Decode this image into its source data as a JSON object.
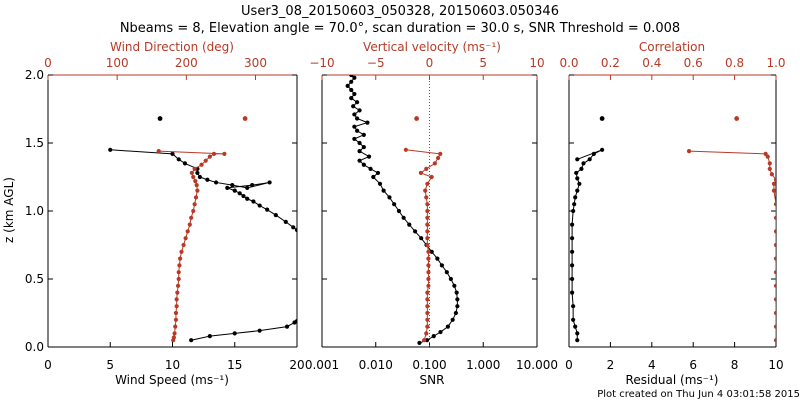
{
  "header": {
    "title_line1": "User3_08_20150603_050328, 20150603.050346",
    "title_line2": "Nbeams = 8, Elevation angle = 70.0°, scan duration = 30.0 s, SNR Threshold = 0.008"
  },
  "footer": {
    "text": "Plot created on Thu Jun  4 03:01:58 2015"
  },
  "colors": {
    "black": "#000000",
    "red": "#b83a26"
  },
  "chart_data": [
    {
      "id": "wind",
      "type": "line",
      "ylabel": "z (km AGL)",
      "ylim": [
        0,
        2.0
      ],
      "yticks": [
        "0.0",
        "0.5",
        "1.0",
        "1.5",
        "2.0"
      ],
      "bottom_axis": {
        "label": "Wind Speed (ms⁻¹)",
        "lim": [
          0,
          20
        ],
        "ticks": [
          "0",
          "5",
          "10",
          "15",
          "20"
        ]
      },
      "top_axis": {
        "label": "Wind Direction (deg)",
        "lim": [
          0,
          360
        ],
        "ticks": [
          "0",
          "100",
          "200",
          "300"
        ]
      },
      "series": [
        {
          "key": "wind_speed",
          "axis": "bottom",
          "color": "#000000",
          "points": [
            [
              11.5,
              0.05
            ],
            [
              13.0,
              0.08
            ],
            [
              15.0,
              0.1
            ],
            [
              17.0,
              0.12
            ],
            [
              19.2,
              0.15
            ],
            [
              19.8,
              0.18
            ],
            [
              20.0,
              0.19
            ],
            [
              20.0,
              0.86
            ],
            [
              19.7,
              0.88
            ],
            [
              19.1,
              0.92
            ],
            [
              18.3,
              0.97
            ],
            [
              17.6,
              1.01
            ],
            [
              17.0,
              1.04
            ],
            [
              16.5,
              1.07
            ],
            [
              16.0,
              1.09
            ],
            [
              15.7,
              1.11
            ],
            [
              15.4,
              1.13
            ],
            [
              15.0,
              1.15
            ],
            [
              14.4,
              1.17
            ],
            [
              16.4,
              1.19
            ],
            [
              17.8,
              1.21
            ],
            [
              16.0,
              1.17
            ],
            [
              14.8,
              1.19
            ],
            [
              13.5,
              1.21
            ],
            [
              12.8,
              1.23
            ],
            [
              12.2,
              1.25
            ],
            [
              12.0,
              1.28
            ],
            [
              12.0,
              1.31
            ],
            [
              11.0,
              1.35
            ],
            [
              10.5,
              1.38
            ],
            [
              10.0,
              1.42
            ],
            [
              5.0,
              1.45
            ]
          ],
          "isolated": [
            [
              9.0,
              1.68
            ]
          ]
        },
        {
          "key": "wind_direction",
          "axis": "top",
          "color": "#b83a26",
          "points": [
            [
              181,
              0.05
            ],
            [
              182,
              0.07
            ],
            [
              183,
              0.1
            ],
            [
              184,
              0.15
            ],
            [
              185,
              0.2
            ],
            [
              185,
              0.25
            ],
            [
              186,
              0.3
            ],
            [
              186,
              0.35
            ],
            [
              187,
              0.4
            ],
            [
              188,
              0.45
            ],
            [
              189,
              0.5
            ],
            [
              189,
              0.55
            ],
            [
              190,
              0.6
            ],
            [
              191,
              0.65
            ],
            [
              193,
              0.7
            ],
            [
              196,
              0.75
            ],
            [
              199,
              0.8
            ],
            [
              202,
              0.85
            ],
            [
              205,
              0.9
            ],
            [
              207,
              0.95
            ],
            [
              210,
              1.0
            ],
            [
              212,
              1.05
            ],
            [
              214,
              1.1
            ],
            [
              216,
              1.15
            ],
            [
              215,
              1.19
            ],
            [
              213,
              1.22
            ],
            [
              210,
              1.25
            ],
            [
              208,
              1.28
            ],
            [
              212,
              1.31
            ],
            [
              222,
              1.34
            ],
            [
              228,
              1.37
            ],
            [
              234,
              1.4
            ],
            [
              240,
              1.42
            ],
            [
              255,
              1.42
            ],
            [
              160,
              1.44
            ]
          ],
          "isolated": [
            [
              285,
              1.68
            ]
          ]
        }
      ]
    },
    {
      "id": "snr",
      "type": "line",
      "ylim": [
        0,
        2.0
      ],
      "bottom_axis": {
        "label": "SNR",
        "lim": [
          0.001,
          10
        ],
        "scale": "log",
        "ticks": [
          "0.001",
          "0.010",
          "0.100",
          "1.000",
          "10.000"
        ]
      },
      "top_axis": {
        "label": "Vertical velocity (ms⁻¹)",
        "lim": [
          -10,
          10
        ],
        "ticks": [
          "−10",
          "−5",
          "0",
          "5",
          "10"
        ]
      },
      "series": [
        {
          "key": "snr",
          "axis": "bottom",
          "scale": "log",
          "color": "#000000",
          "points": [
            [
              0.065,
              0.03
            ],
            [
              0.09,
              0.05
            ],
            [
              0.12,
              0.08
            ],
            [
              0.16,
              0.11
            ],
            [
              0.22,
              0.15
            ],
            [
              0.27,
              0.2
            ],
            [
              0.31,
              0.25
            ],
            [
              0.33,
              0.3
            ],
            [
              0.33,
              0.35
            ],
            [
              0.32,
              0.4
            ],
            [
              0.29,
              0.45
            ],
            [
              0.25,
              0.5
            ],
            [
              0.21,
              0.55
            ],
            [
              0.17,
              0.6
            ],
            [
              0.14,
              0.65
            ],
            [
              0.11,
              0.7
            ],
            [
              0.088,
              0.75
            ],
            [
              0.07,
              0.8
            ],
            [
              0.054,
              0.85
            ],
            [
              0.042,
              0.9
            ],
            [
              0.033,
              0.95
            ],
            [
              0.027,
              1.0
            ],
            [
              0.022,
              1.05
            ],
            [
              0.018,
              1.1
            ],
            [
              0.014,
              1.15
            ],
            [
              0.012,
              1.2
            ],
            [
              0.009,
              1.25
            ],
            [
              0.011,
              1.28
            ],
            [
              0.008,
              1.31
            ],
            [
              0.006,
              1.34
            ],
            [
              0.005,
              1.37
            ],
            [
              0.0075,
              1.4
            ],
            [
              0.005,
              1.44
            ],
            [
              0.006,
              1.47
            ],
            [
              0.005,
              1.5
            ],
            [
              0.004,
              1.53
            ],
            [
              0.006,
              1.56
            ],
            [
              0.0045,
              1.59
            ],
            [
              0.004,
              1.62
            ],
            [
              0.007,
              1.65
            ],
            [
              0.0045,
              1.68
            ],
            [
              0.004,
              1.71
            ],
            [
              0.005,
              1.74
            ],
            [
              0.0038,
              1.77
            ],
            [
              0.0045,
              1.8
            ],
            [
              0.0035,
              1.83
            ],
            [
              0.004,
              1.86
            ],
            [
              0.0035,
              1.89
            ],
            [
              0.003,
              1.92
            ],
            [
              0.0035,
              1.95
            ],
            [
              0.004,
              1.98
            ],
            [
              0.0035,
              2.0
            ]
          ]
        },
        {
          "key": "vertical_velocity",
          "axis": "top",
          "color": "#b83a26",
          "points": [
            [
              -0.5,
              0.05
            ],
            [
              -0.3,
              0.1
            ],
            [
              -0.2,
              0.15
            ],
            [
              -0.2,
              0.2
            ],
            [
              -0.2,
              0.25
            ],
            [
              -0.2,
              0.3
            ],
            [
              -0.2,
              0.35
            ],
            [
              -0.2,
              0.4
            ],
            [
              -0.1,
              0.45
            ],
            [
              -0.1,
              0.5
            ],
            [
              -0.1,
              0.55
            ],
            [
              -0.1,
              0.6
            ],
            [
              -0.1,
              0.65
            ],
            [
              -0.1,
              0.7
            ],
            [
              -0.2,
              0.75
            ],
            [
              -0.2,
              0.8
            ],
            [
              -0.2,
              0.85
            ],
            [
              -0.2,
              0.9
            ],
            [
              -0.2,
              0.95
            ],
            [
              -0.2,
              1.0
            ],
            [
              -0.2,
              1.05
            ],
            [
              -0.3,
              1.1
            ],
            [
              -0.4,
              1.15
            ],
            [
              -0.2,
              1.2
            ],
            [
              0.2,
              1.25
            ],
            [
              -0.8,
              1.28
            ],
            [
              -0.3,
              1.31
            ],
            [
              0.5,
              1.35
            ],
            [
              0.8,
              1.39
            ],
            [
              1.0,
              1.42
            ],
            [
              -2.2,
              1.45
            ]
          ],
          "isolated": [
            [
              -1.2,
              1.68
            ]
          ]
        }
      ]
    },
    {
      "id": "fit",
      "type": "line",
      "ylim": [
        0,
        2.0
      ],
      "bottom_axis": {
        "label": "Residual (ms⁻¹)",
        "lim": [
          0,
          10
        ],
        "ticks": [
          "0",
          "2",
          "4",
          "6",
          "8",
          "10"
        ]
      },
      "top_axis": {
        "label": "Correlation",
        "lim": [
          0,
          1.0
        ],
        "ticks": [
          "0.0",
          "0.2",
          "0.4",
          "0.6",
          "0.8",
          "1.0"
        ]
      },
      "series": [
        {
          "key": "residual",
          "axis": "bottom",
          "color": "#000000",
          "points": [
            [
              0.4,
              0.05
            ],
            [
              0.4,
              0.1
            ],
            [
              0.3,
              0.15
            ],
            [
              0.2,
              0.2
            ],
            [
              0.2,
              0.3
            ],
            [
              0.15,
              0.4
            ],
            [
              0.15,
              0.5
            ],
            [
              0.15,
              0.6
            ],
            [
              0.15,
              0.7
            ],
            [
              0.15,
              0.8
            ],
            [
              0.15,
              0.9
            ],
            [
              0.2,
              1.0
            ],
            [
              0.25,
              1.05
            ],
            [
              0.3,
              1.1
            ],
            [
              0.4,
              1.15
            ],
            [
              0.5,
              1.2
            ],
            [
              0.4,
              1.24
            ],
            [
              0.35,
              1.28
            ],
            [
              0.6,
              1.31
            ],
            [
              0.7,
              1.35
            ],
            [
              1.0,
              1.38
            ],
            [
              1.2,
              1.42
            ],
            [
              1.6,
              1.45
            ],
            [
              0.4,
              1.38
            ]
          ],
          "isolated": [
            [
              1.6,
              1.68
            ]
          ]
        },
        {
          "key": "correlation",
          "axis": "top",
          "color": "#b83a26",
          "points": [
            [
              1.0,
              0.05
            ],
            [
              1.0,
              0.15
            ],
            [
              1.0,
              0.25
            ],
            [
              1.0,
              0.35
            ],
            [
              1.0,
              0.45
            ],
            [
              1.0,
              0.55
            ],
            [
              1.0,
              0.65
            ],
            [
              1.0,
              0.75
            ],
            [
              1.0,
              0.85
            ],
            [
              1.0,
              0.95
            ],
            [
              1.0,
              1.05
            ],
            [
              0.99,
              1.15
            ],
            [
              0.99,
              1.2
            ],
            [
              1.0,
              1.23
            ],
            [
              0.98,
              1.27
            ],
            [
              0.97,
              1.31
            ],
            [
              0.97,
              1.35
            ],
            [
              0.96,
              1.4
            ],
            [
              0.95,
              1.42
            ],
            [
              0.58,
              1.44
            ]
          ],
          "isolated": [
            [
              0.81,
              1.68
            ]
          ]
        }
      ]
    }
  ]
}
